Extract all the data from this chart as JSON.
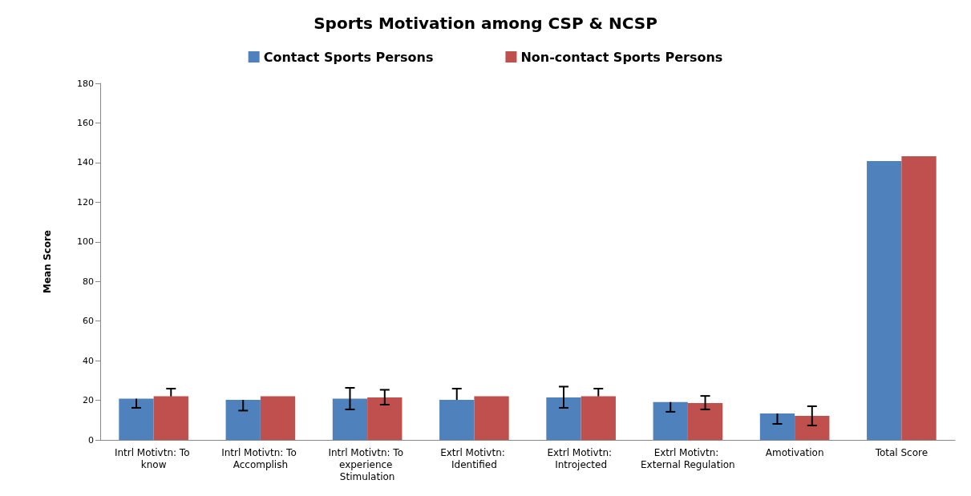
{
  "chart_data": {
    "type": "bar",
    "title": "Sports Motivation among CSP & NCSP",
    "ylabel": "Mean Score",
    "categories": [
      "Intrl Motivtn: To know",
      "Intrl Motivtn: To Accomplish",
      "Intrl Motivtn: To experience Stimulation",
      "Extrl Motivtn: Identified",
      "Extrl Motivtn: Introjected",
      "Extrl Motivtn: External Regulation",
      "Amotivation",
      "Total Score"
    ],
    "series": [
      {
        "name": "Contact Sports Persons",
        "color": "#4f81bd",
        "values": [
          20.8,
          20.2,
          20.8,
          20.2,
          21.4,
          19.1,
          13.3,
          140.8
        ],
        "errors": [
          [
            16.2,
            20.8
          ],
          [
            14.8,
            20.2
          ],
          [
            15.4,
            26.3
          ],
          [
            20.2,
            25.9
          ],
          [
            16.2,
            26.9
          ],
          [
            14.2,
            19.1
          ],
          [
            8.1,
            13.3
          ],
          null
        ]
      },
      {
        "name": "Non-contact Sports Persons",
        "color": "#c0504d",
        "values": [
          22.0,
          22.0,
          21.4,
          22.0,
          22.0,
          18.6,
          12.1,
          143.2
        ],
        "errors": [
          [
            22.0,
            25.9
          ],
          null,
          [
            17.8,
            25.3
          ],
          null,
          [
            22.0,
            25.9
          ],
          [
            15.4,
            22.2
          ],
          [
            7.3,
            17.0
          ],
          null
        ]
      }
    ],
    "ylim": [
      0,
      180
    ],
    "yticks": [
      0,
      20,
      40,
      60,
      80,
      100,
      120,
      140,
      160,
      180
    ],
    "grid": false,
    "legend": "top"
  }
}
